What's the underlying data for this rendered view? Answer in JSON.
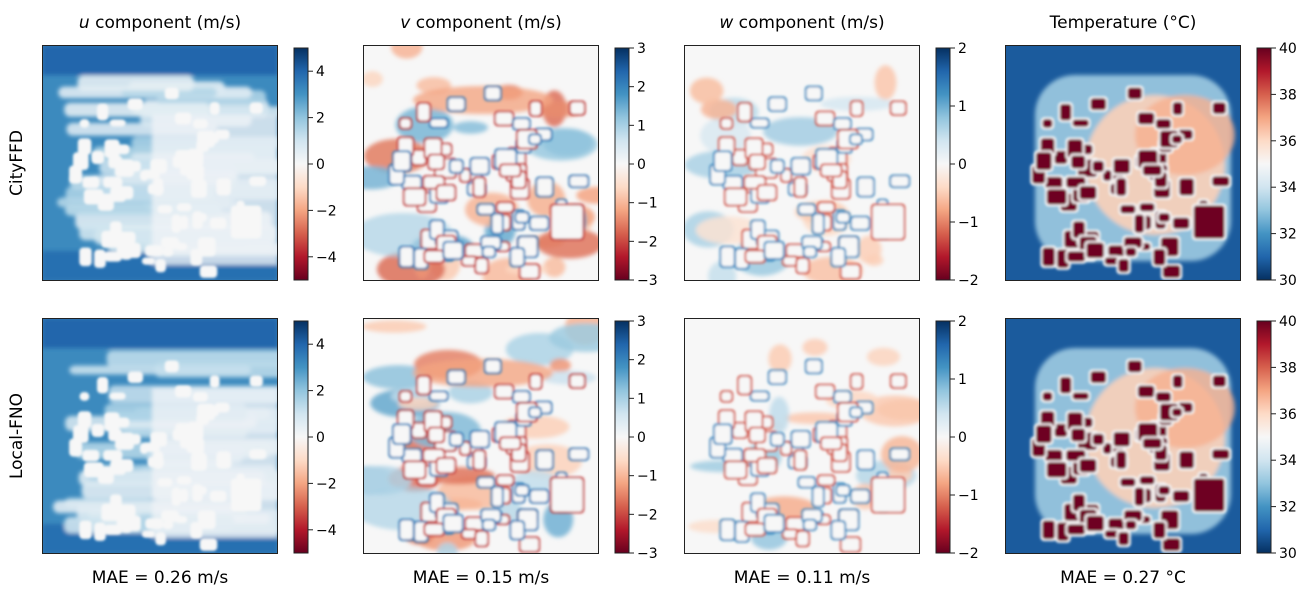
{
  "chart_data": {
    "type": "heatmap",
    "row_labels": [
      "CityFFD",
      "Local-FNO"
    ],
    "columns": [
      {
        "title_prefix": "u",
        "title_rest": " component (m/s)",
        "colormap": "RdBu",
        "vmin": -5,
        "vmax": 5,
        "ticks": [
          4,
          2,
          0,
          -2,
          -4
        ],
        "tick_labels": [
          "4",
          "2",
          "0",
          "−2",
          "−4"
        ],
        "mae": "MAE = 0.26 m/s"
      },
      {
        "title_prefix": "v",
        "title_rest": " component (m/s)",
        "colormap": "RdBu",
        "vmin": -3,
        "vmax": 3,
        "ticks": [
          3,
          2,
          1,
          0,
          -1,
          -2,
          -3
        ],
        "tick_labels": [
          "3",
          "2",
          "1",
          "0",
          "−1",
          "−2",
          "−3"
        ],
        "mae": "MAE = 0.15 m/s"
      },
      {
        "title_prefix": "w",
        "title_rest": " component (m/s)",
        "colormap": "RdBu",
        "vmin": -2,
        "vmax": 2,
        "ticks": [
          2,
          1,
          0,
          -1,
          -2
        ],
        "tick_labels": [
          "2",
          "1",
          "0",
          "−1",
          "−2"
        ],
        "mae": "MAE = 0.11 m/s"
      },
      {
        "title_prefix": "",
        "title_rest": "Temperature (°C)",
        "colormap": "RdBu_r",
        "vmin": 30,
        "vmax": 40,
        "ticks": [
          40,
          38,
          36,
          34,
          32,
          30
        ],
        "tick_labels": [
          "40",
          "38",
          "36",
          "34",
          "32",
          "30"
        ],
        "mae": "MAE = 0.27 °C"
      }
    ],
    "colormap_stops": [
      "#053061",
      "#2166ac",
      "#4393c3",
      "#92c5de",
      "#d1e5f0",
      "#f7f7f7",
      "#fddbc7",
      "#f4a582",
      "#d6604d",
      "#b2182b",
      "#67001f"
    ]
  }
}
